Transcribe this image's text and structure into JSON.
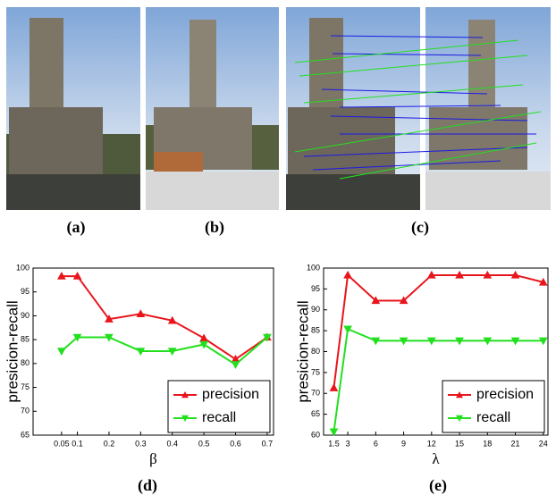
{
  "captions": [
    "(a)",
    "(b)",
    "(c)",
    "(d)",
    "(e)"
  ],
  "chart_data": [
    {
      "type": "line",
      "xlabel": "β",
      "ylabel": "presicion-recall",
      "x": [
        0.05,
        0.1,
        0.2,
        0.3,
        0.4,
        0.5,
        0.6,
        0.7
      ],
      "series": [
        {
          "name": "precision",
          "color": "#e8161c",
          "marker": "triangle-up",
          "values": [
            98.3,
            98.3,
            89.3,
            90.4,
            89,
            85.3,
            80.9,
            85.5
          ]
        },
        {
          "name": "recall",
          "color": "#22e01e",
          "marker": "triangle-down",
          "values": [
            82.6,
            85.5,
            85.5,
            82.6,
            82.6,
            84,
            79.8,
            85.5
          ]
        }
      ],
      "xlim": [
        -0.04,
        0.72
      ],
      "xticks": [
        0.05,
        0.1,
        0.2,
        0.3,
        0.4,
        0.5,
        0.6,
        0.7
      ],
      "ylim": [
        65,
        100
      ],
      "yticks": [
        65,
        70,
        75,
        80,
        85,
        90,
        95,
        100
      ],
      "legend": "lower right"
    },
    {
      "type": "line",
      "xlabel": "λ",
      "ylabel": "presicion-recall",
      "x": [
        1.5,
        3,
        6,
        9,
        12,
        15,
        18,
        21,
        24
      ],
      "series": [
        {
          "name": "precision",
          "color": "#e8161c",
          "marker": "triangle-up",
          "values": [
            71.3,
            98.3,
            92.2,
            92.2,
            98.3,
            98.3,
            98.3,
            98.3,
            96.6
          ]
        },
        {
          "name": "recall",
          "color": "#22e01e",
          "marker": "triangle-down",
          "values": [
            60.8,
            85.4,
            82.6,
            82.6,
            82.6,
            82.6,
            82.6,
            82.6,
            82.6
          ]
        }
      ],
      "xlim": [
        0.4,
        24.5
      ],
      "xticks": [
        1.5,
        3,
        6,
        9,
        12,
        15,
        18,
        21,
        24
      ],
      "ylim": [
        60,
        100
      ],
      "yticks": [
        60,
        65,
        70,
        75,
        80,
        85,
        90,
        95,
        100
      ],
      "legend": "lower right"
    }
  ]
}
